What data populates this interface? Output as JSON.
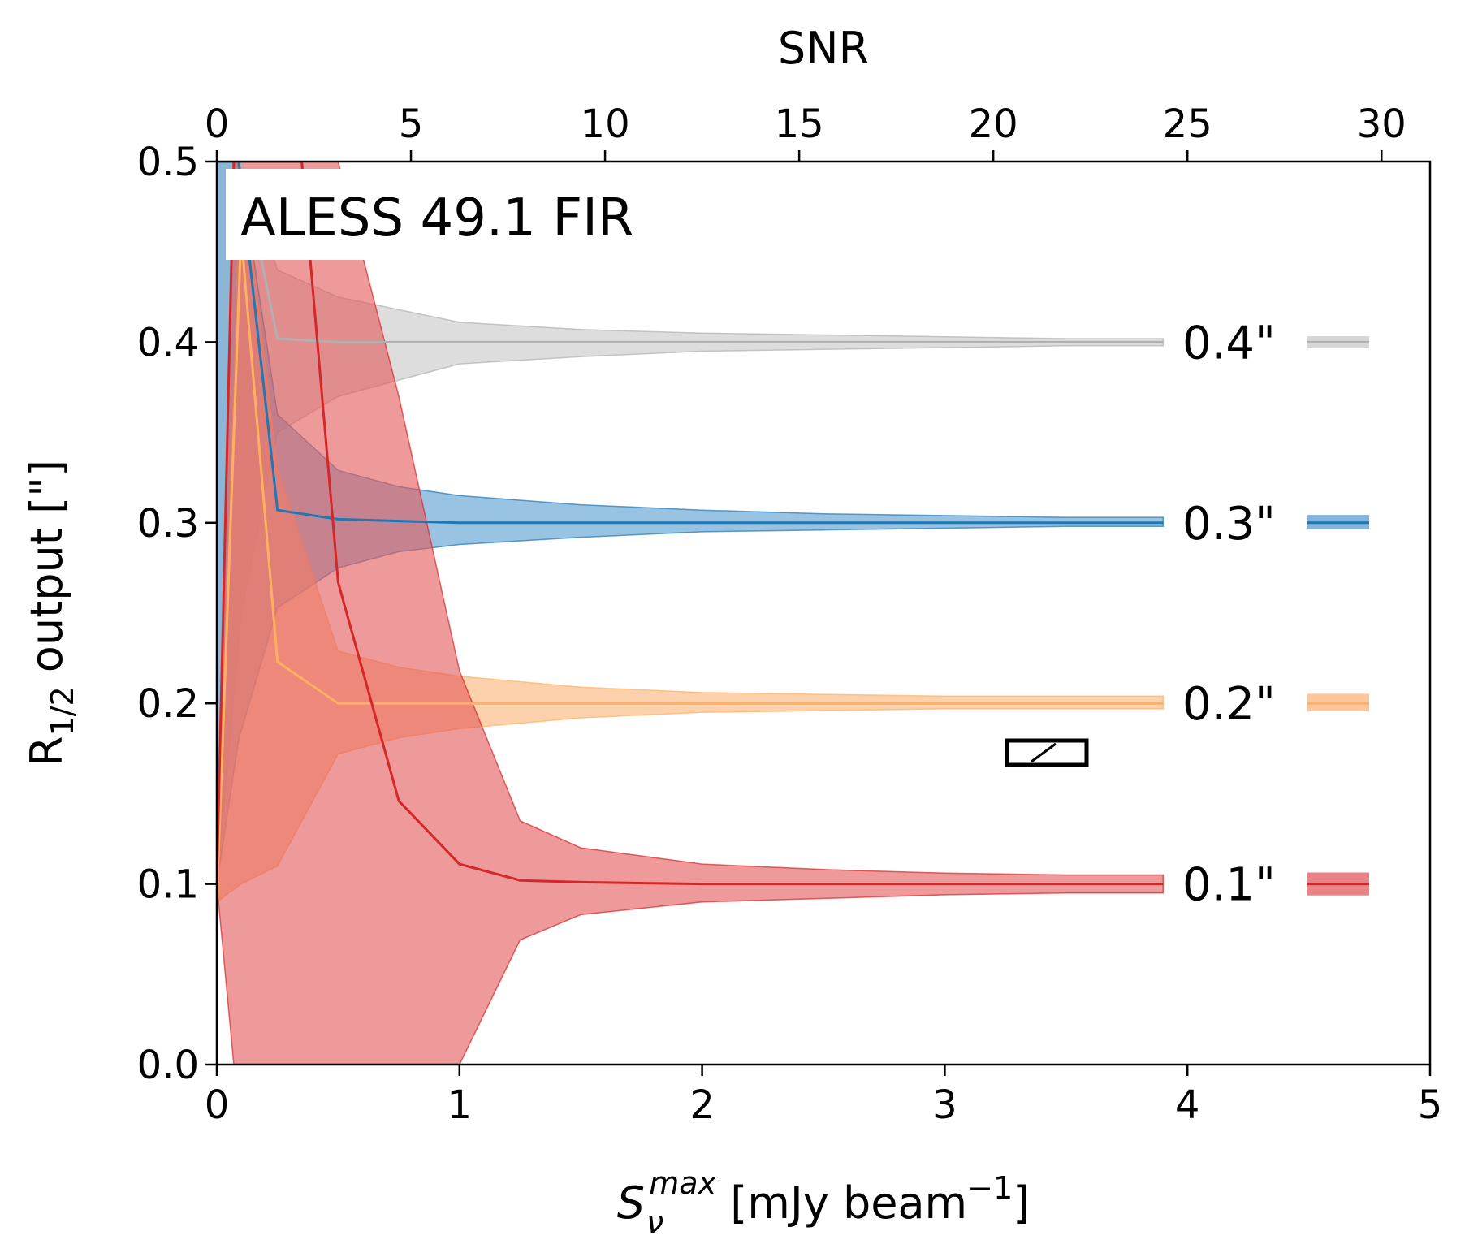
{
  "chart_data": {
    "type": "line",
    "annotation": "ALESS 49.1 FIR",
    "xlabel": {
      "sym": "S",
      "sub": "ν",
      "sup": "max",
      "rest": " [mJy beam",
      "exp": "−1",
      "close": "]"
    },
    "ylabel": {
      "main": "R",
      "sub": "1/2",
      "rest": " output [\"]"
    },
    "top_xlabel": "SNR",
    "xlim": [
      0,
      5
    ],
    "ylim": [
      0,
      0.5
    ],
    "top_xlim": [
      0,
      31.25
    ],
    "xticks": [
      "0",
      "1",
      "2",
      "3",
      "4",
      "5"
    ],
    "yticks": [
      "0.0",
      "0.1",
      "0.2",
      "0.3",
      "0.4",
      "0.5"
    ],
    "top_xticks": [
      "0",
      "5",
      "10",
      "15",
      "20",
      "25",
      "30"
    ],
    "series": [
      {
        "name": "0.4\"",
        "color": "#b0b0b0",
        "fill": "#c8c8c8",
        "x": [
          0,
          0.1,
          0.25,
          0.5,
          1.0,
          1.5,
          2.0,
          2.5,
          3.0,
          3.5,
          3.9
        ],
        "y": [
          0.5,
          0.5,
          0.402,
          0.4,
          0.4,
          0.4,
          0.4,
          0.4,
          0.4,
          0.4,
          0.4
        ],
        "lower": [
          0.1,
          0.25,
          0.35,
          0.37,
          0.388,
          0.392,
          0.395,
          0.396,
          0.397,
          0.398,
          0.398
        ],
        "upper": [
          0.5,
          0.5,
          0.44,
          0.425,
          0.411,
          0.407,
          0.405,
          0.404,
          0.403,
          0.402,
          0.402
        ]
      },
      {
        "name": "0.3\"",
        "color": "#1f77b4",
        "fill": "#5b9ed2",
        "x": [
          0,
          0.09,
          0.25,
          0.5,
          0.75,
          1.0,
          1.5,
          2.0,
          2.5,
          3.0,
          3.5,
          3.9
        ],
        "y": [
          0.5,
          0.5,
          0.307,
          0.302,
          0.301,
          0.3,
          0.3,
          0.3,
          0.3,
          0.3,
          0.3,
          0.3
        ],
        "lower": [
          0.1,
          0.18,
          0.253,
          0.275,
          0.284,
          0.288,
          0.292,
          0.295,
          0.296,
          0.297,
          0.298,
          0.298
        ],
        "upper": [
          0.5,
          0.5,
          0.36,
          0.329,
          0.32,
          0.315,
          0.31,
          0.307,
          0.305,
          0.304,
          0.303,
          0.303
        ]
      },
      {
        "name": "0.2\"",
        "color": "#ffb061",
        "fill": "#fdb47a",
        "x": [
          0,
          0.1,
          0.25,
          0.5,
          0.75,
          1.0,
          1.5,
          2.0,
          2.5,
          3.0,
          3.5,
          3.9
        ],
        "y": [
          0.09,
          0.46,
          0.223,
          0.2,
          0.2,
          0.2,
          0.2,
          0.2,
          0.2,
          0.2,
          0.2,
          0.2
        ],
        "lower": [
          0.09,
          0.1,
          0.11,
          0.172,
          0.181,
          0.186,
          0.192,
          0.195,
          0.196,
          0.197,
          0.197,
          0.197
        ],
        "upper": [
          0.09,
          0.5,
          0.33,
          0.229,
          0.22,
          0.215,
          0.209,
          0.206,
          0.205,
          0.204,
          0.204,
          0.204
        ]
      },
      {
        "name": "0.1\"",
        "color": "#d62728",
        "fill": "#e35a5c",
        "x": [
          0,
          0.07,
          0.25,
          0.35,
          0.5,
          0.75,
          1.0,
          1.25,
          1.5,
          2.0,
          2.5,
          3.0,
          3.5,
          3.9
        ],
        "y": [
          0.1,
          0.5,
          0.5,
          0.5,
          0.267,
          0.146,
          0.111,
          0.102,
          0.101,
          0.1,
          0.1,
          0.1,
          0.1,
          0.1
        ],
        "lower": [
          0.1,
          0.0,
          0.0,
          0.0,
          0.0,
          0.0,
          0.0,
          0.069,
          0.083,
          0.09,
          0.092,
          0.094,
          0.095,
          0.095
        ],
        "upper": [
          0.1,
          0.5,
          0.5,
          0.5,
          0.5,
          0.37,
          0.218,
          0.135,
          0.12,
          0.111,
          0.108,
          0.106,
          0.105,
          0.105
        ]
      }
    ],
    "beam_marker": "beam ellipse"
  }
}
